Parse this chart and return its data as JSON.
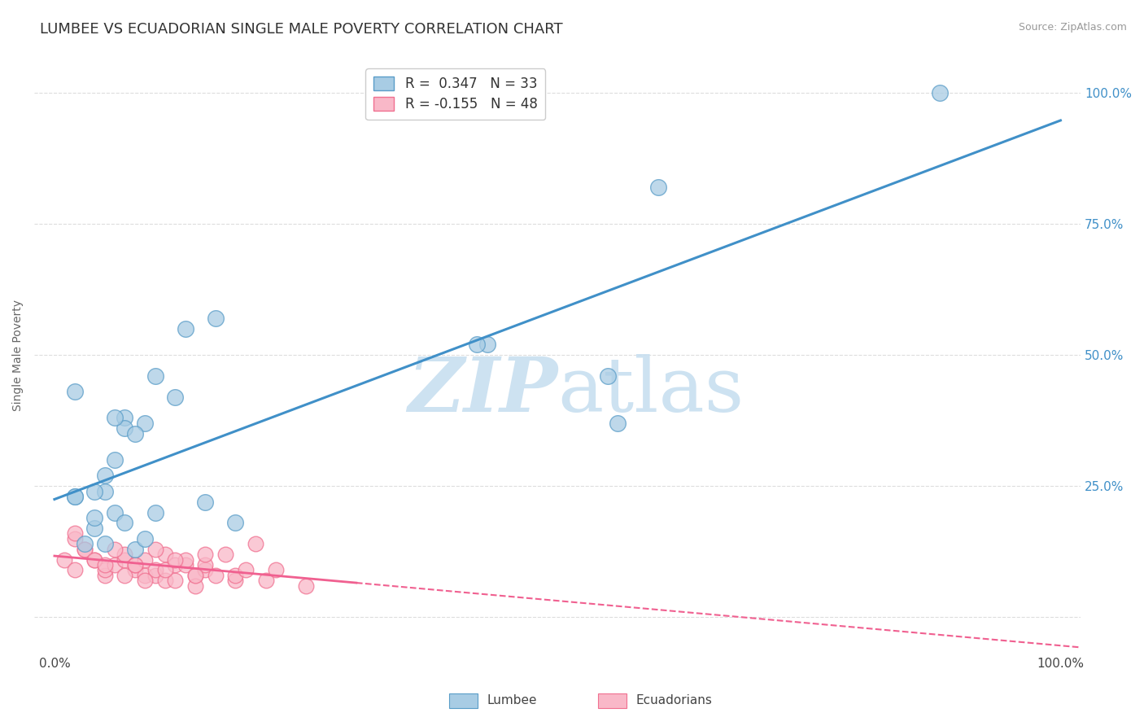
{
  "title": "LUMBEE VS ECUADORIAN SINGLE MALE POVERTY CORRELATION CHART",
  "source": "Source: ZipAtlas.com",
  "ylabel": "Single Male Poverty",
  "xlim": [
    -0.02,
    1.02
  ],
  "ylim": [
    -0.07,
    1.07
  ],
  "legend_r1": "R =  0.347",
  "legend_n1": "N = 33",
  "legend_r2": "R = -0.155",
  "legend_n2": "N = 48",
  "lumbee_color": "#a8cce4",
  "ecuadorian_color": "#f9b8c8",
  "lumbee_edge_color": "#5a9dc8",
  "ecuadorian_edge_color": "#f07090",
  "lumbee_line_color": "#4090c8",
  "ecuadorian_line_color": "#f06090",
  "watermark_color": "#c8dff0",
  "background_color": "#ffffff",
  "grid_color": "#dddddd",
  "lumbee_x": [
    0.02,
    0.05,
    0.13,
    0.16,
    0.02,
    0.07,
    0.09,
    0.07,
    0.43,
    0.42,
    0.55,
    0.6,
    0.05,
    0.1,
    0.88,
    0.05,
    0.1,
    0.04,
    0.12,
    0.06,
    0.15,
    0.18,
    0.06,
    0.04,
    0.08,
    0.07,
    0.03,
    0.02,
    0.08,
    0.06,
    0.09,
    0.04,
    0.56
  ],
  "lumbee_y": [
    0.23,
    0.24,
    0.55,
    0.57,
    0.43,
    0.38,
    0.37,
    0.36,
    0.52,
    0.52,
    0.46,
    0.82,
    0.27,
    0.46,
    1.0,
    0.14,
    0.2,
    0.17,
    0.42,
    0.3,
    0.22,
    0.18,
    0.2,
    0.19,
    0.13,
    0.18,
    0.14,
    0.23,
    0.35,
    0.38,
    0.15,
    0.24,
    0.37
  ],
  "ecuadorian_x": [
    0.01,
    0.02,
    0.02,
    0.03,
    0.04,
    0.05,
    0.05,
    0.06,
    0.07,
    0.07,
    0.08,
    0.08,
    0.09,
    0.09,
    0.1,
    0.1,
    0.11,
    0.11,
    0.12,
    0.12,
    0.13,
    0.13,
    0.14,
    0.14,
    0.15,
    0.15,
    0.16,
    0.17,
    0.18,
    0.18,
    0.19,
    0.02,
    0.03,
    0.04,
    0.05,
    0.06,
    0.07,
    0.08,
    0.09,
    0.1,
    0.11,
    0.12,
    0.14,
    0.15,
    0.2,
    0.21,
    0.22,
    0.25
  ],
  "ecuadorian_y": [
    0.11,
    0.09,
    0.15,
    0.13,
    0.11,
    0.08,
    0.09,
    0.1,
    0.11,
    0.12,
    0.09,
    0.1,
    0.11,
    0.08,
    0.08,
    0.09,
    0.12,
    0.07,
    0.07,
    0.1,
    0.1,
    0.11,
    0.08,
    0.06,
    0.09,
    0.1,
    0.08,
    0.12,
    0.07,
    0.08,
    0.09,
    0.16,
    0.13,
    0.11,
    0.1,
    0.13,
    0.08,
    0.1,
    0.07,
    0.13,
    0.09,
    0.11,
    0.08,
    0.12,
    0.14,
    0.07,
    0.09,
    0.06
  ],
  "title_fontsize": 13,
  "label_fontsize": 10,
  "tick_fontsize": 11,
  "legend_fontsize": 12,
  "right_tick_color": "#4090c8"
}
